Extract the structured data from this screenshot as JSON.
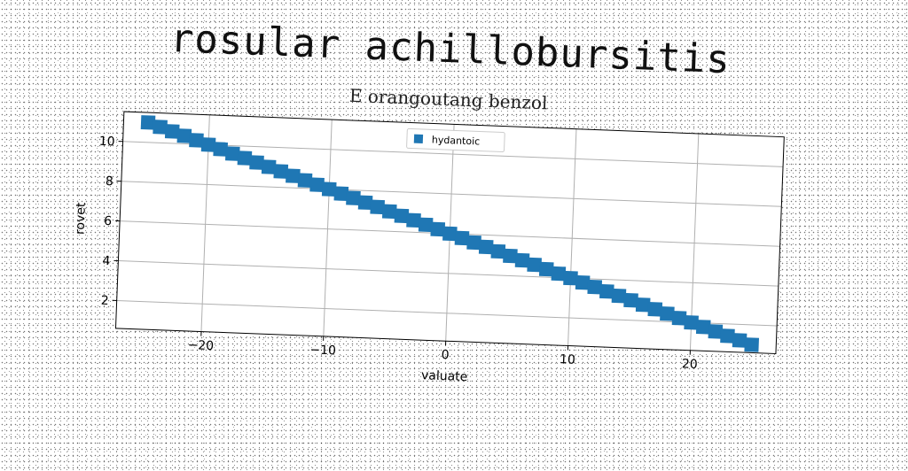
{
  "chart_data": {
    "type": "scatter",
    "title": "rosular achillobursitis",
    "subtitle": "E orangoutang benzol",
    "xlabel": "valuate",
    "ylabel": "rovet",
    "xlim": [
      -27,
      27
    ],
    "ylim": [
      0.6,
      11.5
    ],
    "xticks": [
      -20,
      -10,
      0,
      10,
      20
    ],
    "yticks": [
      2,
      4,
      6,
      8,
      10
    ],
    "grid": true,
    "legend_position": "top-center",
    "marker": "square",
    "series": [
      {
        "name": "hydantoic",
        "color": "#1f77b4",
        "x": [
          -25,
          -24,
          -23,
          -22,
          -21,
          -20,
          -19,
          -18,
          -17,
          -16,
          -15,
          -14,
          -13,
          -12,
          -11,
          -10,
          -9,
          -8,
          -7,
          -6,
          -5,
          -4,
          -3,
          -2,
          -1,
          0,
          1,
          2,
          3,
          4,
          5,
          6,
          7,
          8,
          9,
          10,
          11,
          12,
          13,
          14,
          15,
          16,
          17,
          18,
          19,
          20,
          21,
          22,
          23,
          24,
          25
        ],
        "y": [
          11.0,
          10.8,
          10.6,
          10.4,
          10.2,
          10.0,
          9.8,
          9.6,
          9.4,
          9.2,
          9.0,
          8.8,
          8.6,
          8.4,
          8.2,
          8.0,
          7.8,
          7.6,
          7.4,
          7.2,
          7.0,
          6.8,
          6.6,
          6.4,
          6.2,
          6.0,
          5.8,
          5.6,
          5.4,
          5.2,
          5.0,
          4.8,
          4.6,
          4.4,
          4.2,
          4.0,
          3.8,
          3.6,
          3.4,
          3.2,
          3.0,
          2.8,
          2.6,
          2.4,
          2.2,
          2.0,
          1.8,
          1.6,
          1.4,
          1.2,
          1.0
        ]
      }
    ]
  }
}
